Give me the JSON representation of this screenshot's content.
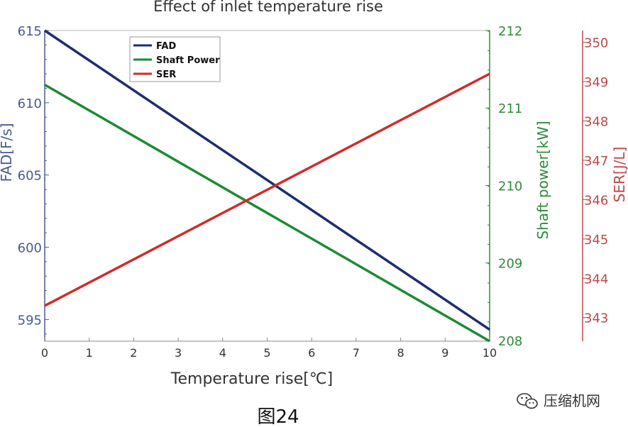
{
  "chart_data": {
    "type": "line",
    "title": "Effect of inlet temperature rise",
    "xlabel": "Temperature rise[℃]",
    "xlim": [
      0,
      10
    ],
    "x_ticks": [
      0,
      1,
      2,
      3,
      4,
      5,
      6,
      7,
      8,
      9,
      10
    ],
    "axes": {
      "left": {
        "label": "FAD[F/s]",
        "lim": [
          593.5,
          615
        ],
        "ticks": [
          595,
          600,
          605,
          610,
          615
        ],
        "color": "#4a5a8c"
      },
      "right1": {
        "label": "Shaft power[kW]",
        "lim": [
          207.99,
          212.0
        ],
        "ticks": [
          208,
          209,
          210,
          211,
          212
        ],
        "color": "#2e8b3a"
      },
      "right2": {
        "label": "SER[J/L]",
        "lim": [
          342.4,
          350.3
        ],
        "ticks": [
          343,
          344,
          345,
          346,
          347,
          348,
          349,
          350
        ],
        "color": "#c04848"
      }
    },
    "series": [
      {
        "name": "FAD",
        "axis": "left",
        "color": "#1f2d6e",
        "x": [
          0,
          10
        ],
        "y": [
          615,
          594.3
        ]
      },
      {
        "name": "Shaft Power",
        "axis": "right1",
        "color": "#1e8a34",
        "x": [
          0,
          10
        ],
        "y": [
          211.3,
          207.99
        ]
      },
      {
        "name": "SER",
        "axis": "right2",
        "color": "#d12a2a",
        "x": [
          0,
          10
        ],
        "y": [
          343.3,
          349.2
        ]
      }
    ],
    "legend_position": "top-left"
  },
  "caption": "图24",
  "watermark": {
    "text": "压缩机网",
    "icon": "wechat-icon"
  }
}
